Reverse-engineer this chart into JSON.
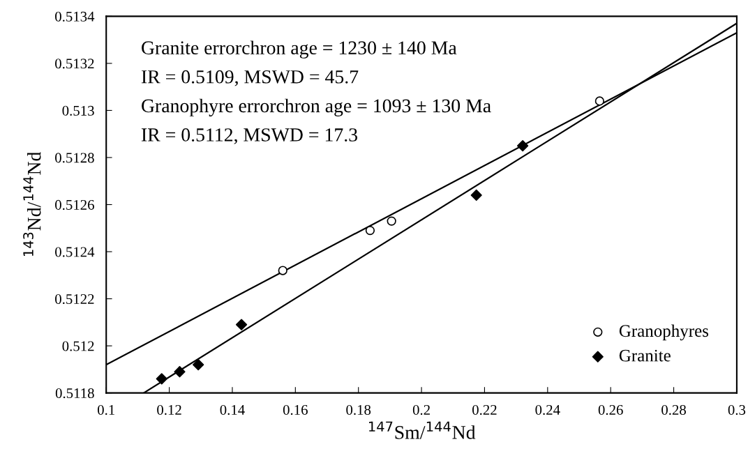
{
  "chart_data": {
    "type": "scatter",
    "xlabel": "$^{147}$Sm/$^{144}$Nd",
    "ylabel": "$^{143}$Nd/$^{144}$Nd",
    "annotations": [
      "Granite errorchron age = 1230 ± 140 Ma",
      "IR = 0.5109, MSWD = 45.7",
      "Granophyre errorchron age = 1093 ± 130 Ma",
      "IR = 0.5112, MSWD = 17.3"
    ],
    "xlim": [
      0.1,
      0.3
    ],
    "xticks": [
      0.1,
      0.12,
      0.14,
      0.16,
      0.18,
      0.2,
      0.22,
      0.24,
      0.26,
      0.28,
      0.3
    ],
    "ylim": [
      0.5118,
      0.5134
    ],
    "yticks": [
      0.5118,
      0.512,
      0.5122,
      0.5124,
      0.5126,
      0.5128,
      0.513,
      0.5132,
      0.5134
    ],
    "grid": false,
    "legend": "bottom right",
    "series": [
      {
        "name": "Granophyres",
        "marker": "circle",
        "color": "#000000",
        "x": [
          0.156,
          0.1837,
          0.1905,
          0.2565
        ],
        "values": [
          0.51232,
          0.51249,
          0.51253,
          0.51304
        ]
      },
      {
        "name": "Granite",
        "marker": "diamond",
        "color": "#000000",
        "x": [
          0.1176,
          0.1233,
          0.1292,
          0.1429,
          0.2174,
          0.2321
        ],
        "values": [
          0.51186,
          0.51189,
          0.51192,
          0.51209,
          0.51264,
          0.51285
        ]
      },
      {
        "type": "line",
        "marker": "none",
        "line_style": "solid",
        "color": "#000000",
        "x": [
          0.1,
          0.3
        ],
        "values": [
          0.51192,
          0.51333
        ]
      },
      {
        "type": "line",
        "marker": "none",
        "line_style": "solid",
        "color": "#000000",
        "x": [
          0.1119,
          0.3
        ],
        "values": [
          0.5118,
          0.51337
        ]
      }
    ]
  }
}
